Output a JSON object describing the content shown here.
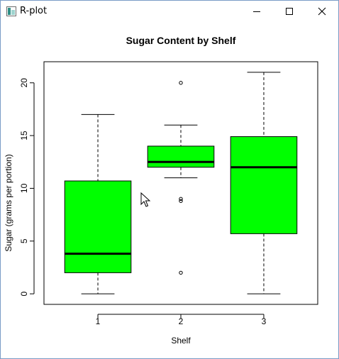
{
  "window": {
    "title": "R-plot",
    "icons": {
      "app": "r-plot-window-icon",
      "minimize": "minimize-icon",
      "maximize": "maximize-icon",
      "close": "close-icon",
      "cursor": "mouse-pointer-icon"
    }
  },
  "chart_data": {
    "type": "boxplot",
    "title": "Sugar Content by Shelf",
    "xlabel": "Shelf",
    "ylabel": "Sugar (grams per portion)",
    "categories": [
      "1",
      "2",
      "3"
    ],
    "ylim": [
      -1,
      22
    ],
    "yticks": [
      0,
      5,
      10,
      15,
      20
    ],
    "grid": false,
    "legend": "none",
    "box_color": "#00ff00",
    "boxes": [
      {
        "shelf": "1",
        "whisker_low": 0,
        "q1": 2,
        "median": 3.8,
        "q3": 10.7,
        "whisker_high": 17,
        "outliers": []
      },
      {
        "shelf": "2",
        "whisker_low": 11,
        "q1": 12,
        "median": 12.5,
        "q3": 14,
        "whisker_high": 16,
        "outliers": [
          20,
          9,
          8.8,
          2
        ]
      },
      {
        "shelf": "3",
        "whisker_low": 0,
        "q1": 5.7,
        "median": 12,
        "q3": 14.9,
        "whisker_high": 21,
        "outliers": []
      }
    ]
  }
}
